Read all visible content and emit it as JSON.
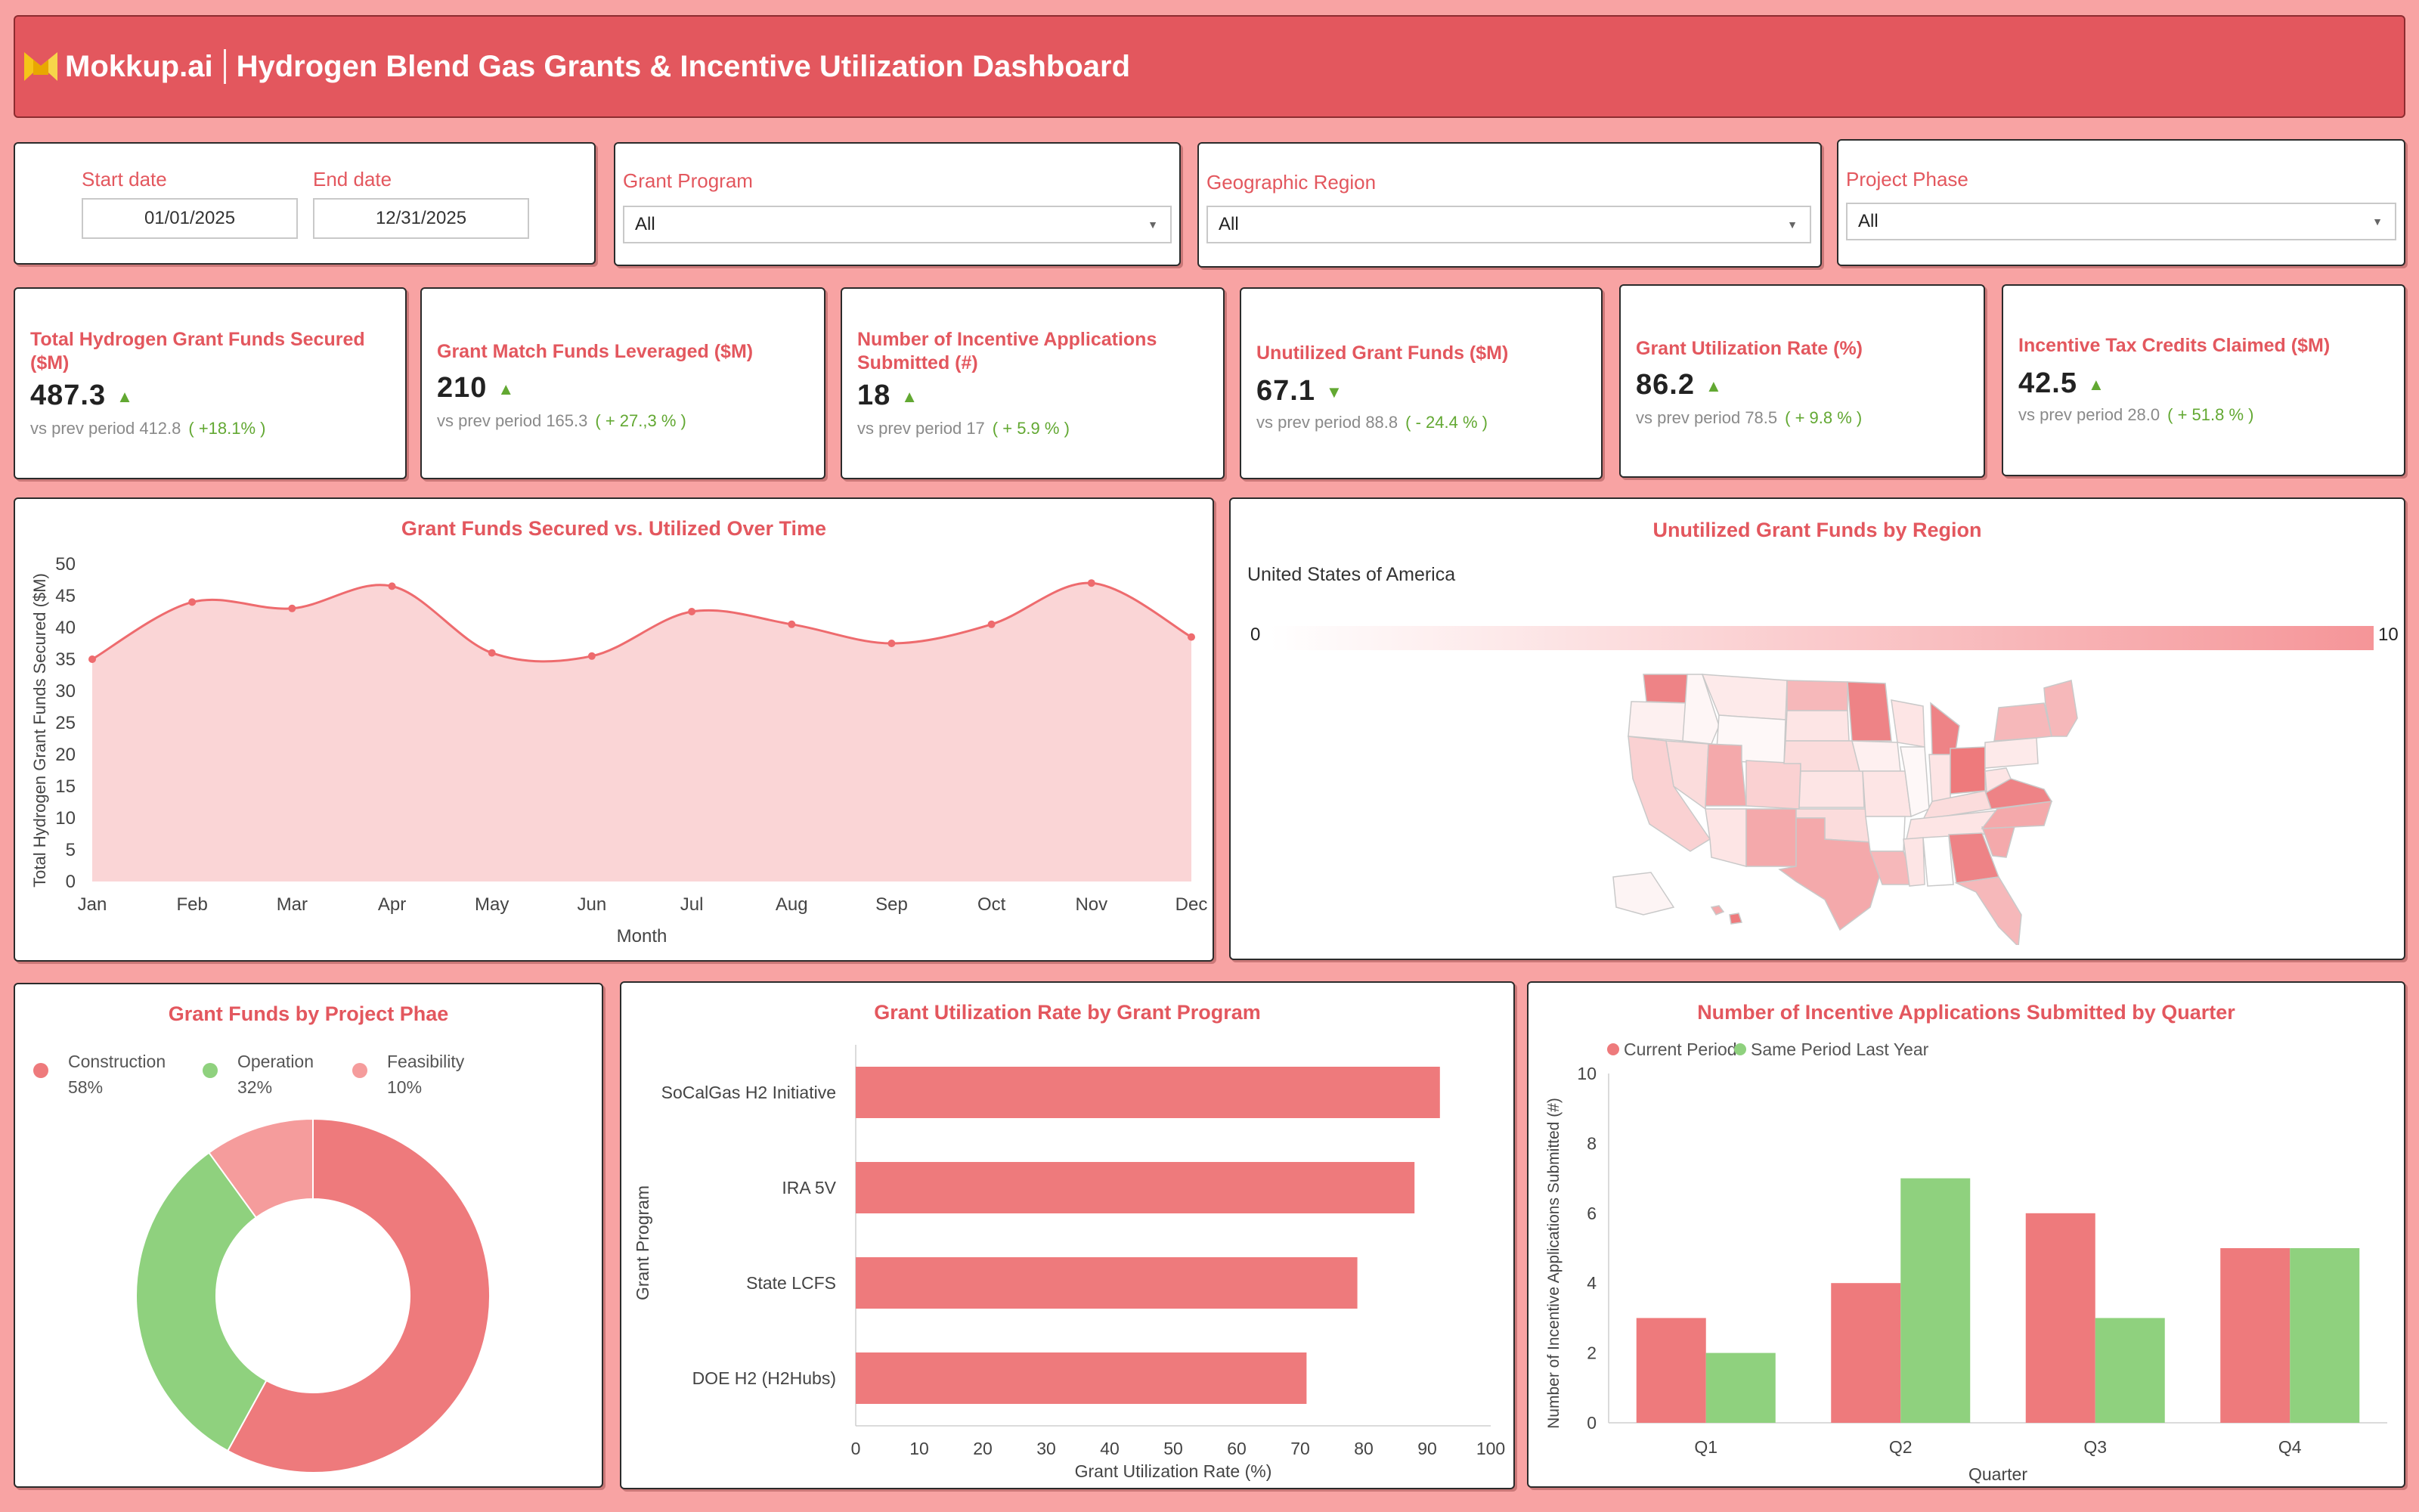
{
  "header": {
    "logo_text": "Mokkup.ai",
    "title": "Hydrogen Blend Gas Grants & Incentive Utilization Dashboard"
  },
  "filters": {
    "start_label": "Start date",
    "start_value": "01/01/2025",
    "end_label": "End date",
    "end_value": "12/31/2025",
    "grant_program_label": "Grant Program",
    "grant_program_value": "All",
    "region_label": "Geographic Region",
    "region_value": "All",
    "phase_label": "Project Phase",
    "phase_value": "All"
  },
  "kpis": [
    {
      "title": "Total Hydrogen Grant Funds Secured ($M)",
      "value": "487.3",
      "prev_label": "vs prev period",
      "prev": "412.8",
      "change": "( +18.1% )",
      "direction": "up"
    },
    {
      "title": "Grant Match Funds Leveraged ($M)",
      "value": "210",
      "prev_label": "vs prev period",
      "prev": "165.3",
      "change": "( + 27.,3 % )",
      "direction": "up"
    },
    {
      "title": "Number of Incentive Applications Submitted (#)",
      "value": "18",
      "prev_label": "vs prev period",
      "prev": "17",
      "change": "( + 5.9 % )",
      "direction": "up"
    },
    {
      "title": "Unutilized Grant Funds ($M)",
      "value": "67.1",
      "prev_label": "vs prev period",
      "prev": "88.8",
      "change": "( - 24.4 % )",
      "direction": "down"
    },
    {
      "title": "Grant Utilization Rate (%)",
      "value": "86.2",
      "prev_label": "vs prev period",
      "prev": "78.5",
      "change": "( + 9.8 % )",
      "direction": "up"
    },
    {
      "title": "Incentive Tax Credits Claimed ($M)",
      "value": "42.5",
      "prev_label": "vs prev period",
      "prev": "28.0",
      "change": "( + 51.8 % )",
      "direction": "up"
    }
  ],
  "colors": {
    "accent": "#e3575e",
    "positive": "#62a832",
    "line": "#ee6b6e",
    "area": "#fad5d6",
    "construction": "#ee7a7c",
    "operation": "#8fd17e",
    "feasibility": "#f59c9c"
  },
  "map": {
    "title": "Unutilized Grant Funds by Region",
    "country": "United States of America",
    "scale_min": "0",
    "scale_max": "10"
  },
  "chart_data": [
    {
      "type": "area",
      "title": "Grant Funds Secured vs. Utilized Over Time",
      "xlabel": "Month",
      "ylabel": "Total Hydrogen Grant Funds Secured ($M)",
      "categories": [
        "Jan",
        "Feb",
        "Mar",
        "Apr",
        "May",
        "Jun",
        "Jul",
        "Aug",
        "Sep",
        "Oct",
        "Nov",
        "Dec"
      ],
      "values": [
        35,
        44,
        43,
        46.5,
        36,
        35.5,
        42.5,
        40.5,
        37.5,
        40.5,
        47,
        38.5
      ],
      "ylim": [
        0,
        50
      ],
      "yticks": [
        0,
        5,
        10,
        15,
        20,
        25,
        30,
        35,
        40,
        45,
        50
      ]
    },
    {
      "type": "pie",
      "title": "Grant Funds by Project Phae",
      "series": [
        {
          "name": "Construction",
          "label": "58%",
          "value": 58
        },
        {
          "name": "Operation",
          "label": "32%",
          "value": 32
        },
        {
          "name": "Feasibility",
          "label": "10%",
          "value": 10
        }
      ]
    },
    {
      "type": "bar",
      "orientation": "horizontal",
      "title": "Grant Utilization Rate by Grant Program",
      "xlabel": "Grant Utilization Rate (%)",
      "ylabel": "Grant Program",
      "categories": [
        "SoCalGas H2 Initiative",
        "IRA 5V",
        "State LCFS",
        "DOE H2 (H2Hubs)"
      ],
      "values": [
        92,
        88,
        79,
        71
      ],
      "xlim": [
        0,
        100
      ],
      "xticks": [
        0,
        10,
        20,
        30,
        40,
        50,
        60,
        70,
        80,
        90,
        100
      ]
    },
    {
      "type": "bar",
      "title": "Number of Incentive Applications Submitted by Quarter",
      "xlabel": "Quarter",
      "ylabel": "Number of Incentive Applications Submitted (#)",
      "categories": [
        "Q1",
        "Q2",
        "Q3",
        "Q4"
      ],
      "series": [
        {
          "name": "Current Period",
          "values": [
            3,
            4,
            6,
            5
          ]
        },
        {
          "name": "Same Period Last Year",
          "values": [
            2,
            7,
            3,
            5
          ]
        }
      ],
      "ylim": [
        0,
        10
      ],
      "yticks": [
        0,
        2,
        4,
        6,
        8,
        10
      ]
    }
  ]
}
